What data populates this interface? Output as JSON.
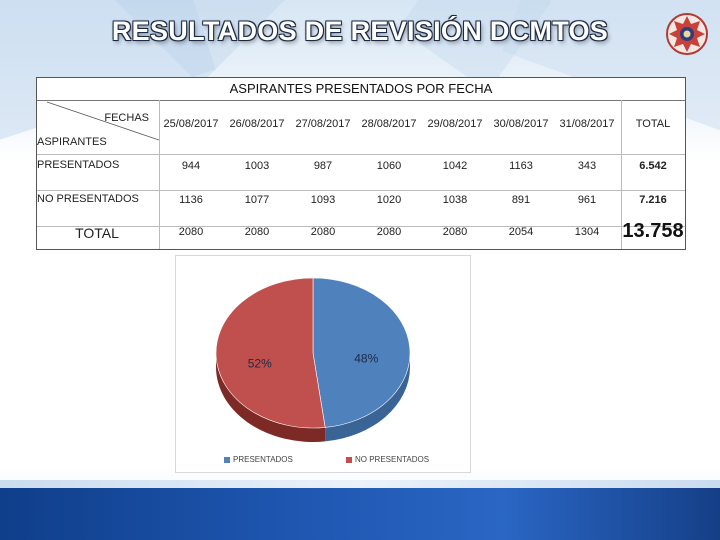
{
  "title": "RESULTADOS DE REVISIÓN DCMTOS",
  "table": {
    "title": "ASPIRANTES PRESENTADOS POR FECHA",
    "corner_top": "FECHAS",
    "corner_bottom": "ASPIRANTES",
    "columns": [
      "25/08/2017",
      "26/08/2017",
      "27/08/2017",
      "28/08/2017",
      "29/08/2017",
      "30/08/2017",
      "31/08/2017",
      "TOTAL"
    ],
    "rows": [
      {
        "label": "PRESENTADOS",
        "values": [
          "944",
          "1003",
          "987",
          "1060",
          "1042",
          "1163",
          "343"
        ],
        "total": "6.542"
      },
      {
        "label": "NO PRESENTADOS",
        "values": [
          "1136",
          "1077",
          "1093",
          "1020",
          "1038",
          "891",
          "961"
        ],
        "total": "7.216"
      },
      {
        "label": "TOTAL",
        "values": [
          "2080",
          "2080",
          "2080",
          "2080",
          "2080",
          "2054",
          "1304"
        ],
        "total": "13.758"
      }
    ]
  },
  "chart_data": {
    "type": "pie",
    "labels": [
      "PRESENTADOS",
      "NO PRESENTADOS"
    ],
    "values": [
      48,
      52
    ],
    "value_labels": [
      "48%",
      "52%"
    ],
    "colors": [
      "#4f81bd",
      "#c0504d"
    ],
    "legend_position": "bottom",
    "style": "3d"
  },
  "colors": {
    "presentados": "#4f81bd",
    "no_presentados": "#c0504d",
    "footer": "#1e56b0"
  }
}
